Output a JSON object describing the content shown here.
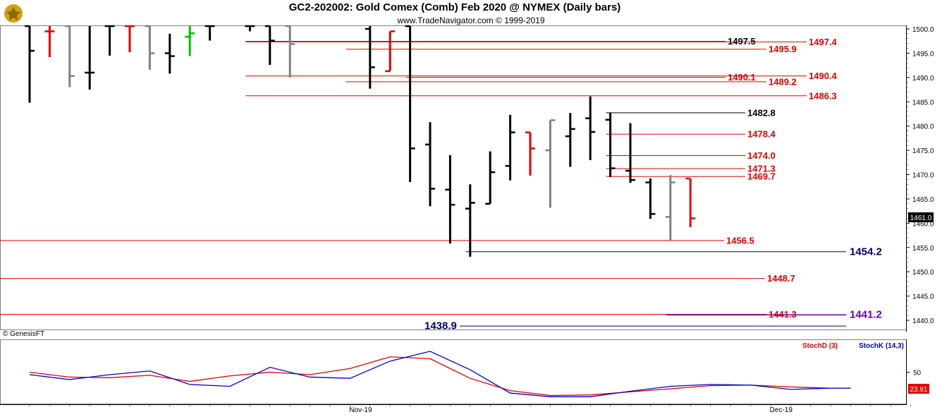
{
  "header": {
    "title": "GC2-202002:  Gold Comex (Comb) Feb 2020 @ NYMEX  (Daily bars)",
    "subtitle": "www.TradeNavigator.com © 1999-2019",
    "copyright": "© GenesisFT"
  },
  "colors": {
    "black": "#000000",
    "red": "#e00000",
    "gray": "#808080",
    "green": "#00c000",
    "blue": "#0000cc",
    "navy": "#000066",
    "purple": "#6600aa",
    "background": "#ffffff"
  },
  "chart_data": [
    {
      "type": "ohlc",
      "title": "GC2-202002:  Gold Comex (Comb) Feb 2020 @ NYMEX  (Daily bars)",
      "ylim": [
        1437,
        1502
      ],
      "yticks": [
        1440.0,
        1445.0,
        1450.0,
        1455.0,
        1460.0,
        1465.0,
        1470.0,
        1475.0,
        1480.0,
        1485.0,
        1490.0,
        1495.0,
        1500.0
      ],
      "ytick_labels": [
        "1440.0",
        "1445.0",
        "1450.0",
        "1455.0",
        "1460.0",
        "1465.0",
        "1470.0",
        "1475.0",
        "1480.0",
        "1485.0",
        "1490.0",
        "1495.0",
        "1500.0"
      ],
      "x_labels": [
        {
          "label": "Nov-19",
          "index": 16
        },
        {
          "label": "Dec-19",
          "index": 37
        }
      ],
      "last_price": "1461.0",
      "bars": [
        {
          "i": 0,
          "o": 1502,
          "h": 1502,
          "l": 1484.8,
          "c": 1495.5,
          "color": "black"
        },
        {
          "i": 1,
          "o": 1499.5,
          "h": 1502,
          "l": 1494.2,
          "c": 1499.5,
          "color": "red"
        },
        {
          "i": 2,
          "o": 1502,
          "h": 1502,
          "l": 1488,
          "c": 1490.3,
          "color": "gray"
        },
        {
          "i": 3,
          "o": 1491,
          "h": 1502,
          "l": 1487.5,
          "c": 1491,
          "color": "black"
        },
        {
          "i": 4,
          "o": 1502,
          "h": 1502,
          "l": 1494.5,
          "c": 1502,
          "color": "black"
        },
        {
          "i": 5,
          "o": 1502,
          "h": 1502,
          "l": 1495.2,
          "c": 1502,
          "color": "red"
        },
        {
          "i": 6,
          "o": 1502,
          "h": 1502,
          "l": 1491.6,
          "c": 1495,
          "color": "gray"
        },
        {
          "i": 7,
          "o": 1495,
          "h": 1499,
          "l": 1490.8,
          "c": 1494.4,
          "color": "black"
        },
        {
          "i": 8,
          "o": 1498.4,
          "h": 1502,
          "l": 1494.4,
          "c": 1499.1,
          "color": "green"
        },
        {
          "i": 9,
          "o": 1502,
          "h": 1502,
          "l": 1497.6,
          "c": 1502,
          "color": "black"
        },
        {
          "i": 11,
          "o": 1502,
          "h": 1502,
          "l": 1499.5,
          "c": 1502,
          "color": "black"
        },
        {
          "i": 12,
          "o": 1502,
          "h": 1502,
          "l": 1492.6,
          "c": 1497.6,
          "color": "black"
        },
        {
          "i": 13,
          "o": 1502,
          "h": 1502,
          "l": 1490,
          "c": 1496.9,
          "color": "gray"
        },
        {
          "i": 17,
          "o": 1500,
          "h": 1502,
          "l": 1487.7,
          "c": 1492.1,
          "color": "black"
        },
        {
          "i": 18,
          "o": 1491.3,
          "h": 1499.5,
          "l": 1491.3,
          "c": 1499.5,
          "color": "red"
        },
        {
          "i": 19,
          "o": 1502,
          "h": 1502,
          "l": 1468.5,
          "c": 1475.4,
          "color": "black"
        },
        {
          "i": 20,
          "o": 1476.2,
          "h": 1480.8,
          "l": 1463.5,
          "c": 1467.1,
          "color": "black"
        },
        {
          "i": 21,
          "o": 1466.9,
          "h": 1474,
          "l": 1455.8,
          "c": 1463.8,
          "color": "black"
        },
        {
          "i": 22,
          "o": 1463,
          "h": 1468,
          "l": 1453.1,
          "c": 1464.2,
          "color": "black"
        },
        {
          "i": 23,
          "o": 1464,
          "h": 1474.8,
          "l": 1464,
          "c": 1470.5,
          "color": "black"
        },
        {
          "i": 24,
          "o": 1471.8,
          "h": 1482.3,
          "l": 1468.8,
          "c": 1478.7,
          "color": "black"
        },
        {
          "i": 25,
          "o": 1478.7,
          "h": 1478.7,
          "l": 1469.8,
          "c": 1475.4,
          "color": "red"
        },
        {
          "i": 26,
          "o": 1475,
          "h": 1481.2,
          "l": 1463.2,
          "c": 1481.2,
          "color": "gray"
        },
        {
          "i": 27,
          "o": 1477.9,
          "h": 1482.7,
          "l": 1471.6,
          "c": 1479.4,
          "color": "black"
        },
        {
          "i": 28,
          "o": 1481.6,
          "h": 1486.1,
          "l": 1473,
          "c": 1478.8,
          "color": "black"
        },
        {
          "i": 29,
          "o": 1481.3,
          "h": 1482.8,
          "l": 1469.5,
          "c": 1471.3,
          "color": "black"
        },
        {
          "i": 30,
          "o": 1470.8,
          "h": 1480.6,
          "l": 1468.3,
          "c": 1468.9,
          "color": "black"
        },
        {
          "i": 31,
          "o": 1468.4,
          "h": 1469.2,
          "l": 1460.9,
          "c": 1461.9,
          "color": "black"
        },
        {
          "i": 32,
          "o": 1461.3,
          "h": 1469.9,
          "l": 1456.5,
          "c": 1468.4,
          "color": "gray"
        },
        {
          "i": 33,
          "o": 1469.2,
          "h": 1469.2,
          "l": 1459.2,
          "c": 1461,
          "color": "red"
        }
      ],
      "levels": [
        {
          "value": 1497.5,
          "label": "1497.5",
          "color": "black",
          "from_i": 11,
          "big": false
        },
        {
          "value": 1497.4,
          "label": "1497.4",
          "color": "red",
          "from_i": 11,
          "big": false
        },
        {
          "value": 1495.9,
          "label": "1495.9",
          "color": "red",
          "from_i": 16,
          "big": false
        },
        {
          "value": 1490.4,
          "label": "1490.4",
          "color": "red",
          "from_i": 11,
          "big": false
        },
        {
          "value": 1490.1,
          "label": "1490.1",
          "color": "red",
          "from_i": 19,
          "big": false
        },
        {
          "value": 1489.2,
          "label": "1489.2",
          "color": "red",
          "from_i": 16,
          "big": false
        },
        {
          "value": 1486.3,
          "label": "1486.3",
          "color": "red",
          "from_i": 11,
          "big": false
        },
        {
          "value": 1482.8,
          "label": "1482.8",
          "color": "black",
          "from_i": 29,
          "big": false
        },
        {
          "value": 1478.4,
          "label": "1478.4",
          "color": "red",
          "from_i": 29,
          "big": false
        },
        {
          "value": 1474.0,
          "label": "1474.0",
          "color": "red",
          "from_i": 29,
          "big": false
        },
        {
          "value": 1471.3,
          "label": "1471.3",
          "color": "red",
          "from_i": 29,
          "big": false
        },
        {
          "value": 1469.7,
          "label": "1469.7",
          "color": "red",
          "from_i": 29,
          "big": false
        },
        {
          "value": 1456.5,
          "label": "1456.5",
          "color": "red",
          "from_i": -1,
          "big": false
        },
        {
          "value": 1454.2,
          "label": "1454.2",
          "color": "navy",
          "from_i": 22,
          "big": true
        },
        {
          "value": 1448.7,
          "label": "1448.7",
          "color": "red",
          "from_i": -1,
          "big": false
        },
        {
          "value": 1441.3,
          "label": "1441.3",
          "color": "red",
          "from_i": -1,
          "big": false
        },
        {
          "value": 1441.2,
          "label": "1441.2",
          "color": "purple",
          "from_i": 32,
          "big": true
        },
        {
          "value": 1438.9,
          "label": "1438.9",
          "color": "navy",
          "from_i": 22,
          "big": true
        }
      ]
    },
    {
      "type": "line",
      "ylim": [
        0,
        100
      ],
      "yticks": [
        50
      ],
      "ytick_labels": [
        "50"
      ],
      "last_value": "23.81",
      "series": [
        {
          "name": "StochD (3)",
          "color": "red",
          "values": [
            [
              0,
              50
            ],
            [
              2,
              42
            ],
            [
              4,
              41
            ],
            [
              6,
              45
            ],
            [
              8,
              35
            ],
            [
              10,
              44
            ],
            [
              12,
              50
            ],
            [
              14,
              46
            ],
            [
              16,
              56
            ],
            [
              18,
              75
            ],
            [
              20,
              72
            ],
            [
              22,
              40
            ],
            [
              24,
              20
            ],
            [
              26,
              12
            ],
            [
              28,
              13
            ],
            [
              30,
              18
            ],
            [
              32,
              23
            ],
            [
              34,
              28
            ],
            [
              36,
              29
            ],
            [
              38,
              26
            ],
            [
              40,
              24
            ],
            [
              41,
              24
            ]
          ]
        },
        {
          "name": "StochK (14,3)",
          "color": "blue",
          "values": [
            [
              0,
              46
            ],
            [
              2,
              38
            ],
            [
              4,
              46
            ],
            [
              6,
              52
            ],
            [
              8,
              30
            ],
            [
              10,
              27
            ],
            [
              12,
              58
            ],
            [
              14,
              42
            ],
            [
              16,
              40
            ],
            [
              18,
              68
            ],
            [
              20,
              84
            ],
            [
              22,
              54
            ],
            [
              24,
              16
            ],
            [
              26,
              10
            ],
            [
              28,
              10
            ],
            [
              30,
              19
            ],
            [
              32,
              27
            ],
            [
              34,
              30
            ],
            [
              36,
              29
            ],
            [
              38,
              22
            ],
            [
              40,
              24
            ],
            [
              41,
              24
            ]
          ]
        }
      ]
    }
  ]
}
